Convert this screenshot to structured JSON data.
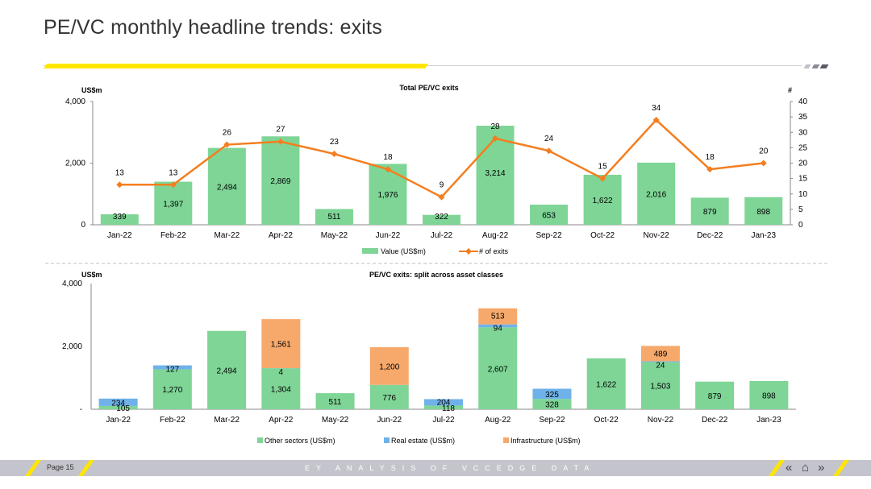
{
  "page_title": "PE/VC monthly headline trends: exits",
  "footer": {
    "page": "Page 15",
    "source": "EY ANALYSIS OF VCCEDGE DATA",
    "nav_prev": "«",
    "nav_home": "⌂",
    "nav_next": "»"
  },
  "colors": {
    "green": "#7ed596",
    "blue": "#6fb2e9",
    "orange": "#f7a96b",
    "line": "#f47e1f",
    "yellow": "#ffe600"
  },
  "chart_data": [
    {
      "type": "bar",
      "title": "Total PE/VC exits",
      "ylabel": "US$m",
      "y2label": "#",
      "ylim": [
        0,
        4000
      ],
      "y_ticks": [
        "0",
        "2,000",
        "4,000"
      ],
      "y2lim": [
        0,
        40
      ],
      "y2_ticks": [
        "0",
        "5",
        "10",
        "15",
        "20",
        "25",
        "30",
        "35",
        "40"
      ],
      "categories": [
        "Jan-22",
        "Feb-22",
        "Mar-22",
        "Apr-22",
        "May-22",
        "Jun-22",
        "Jul-22",
        "Aug-22",
        "Sep-22",
        "Oct-22",
        "Nov-22",
        "Dec-22",
        "Jan-23"
      ],
      "series": [
        {
          "name": "Value (US$m)",
          "kind": "bar",
          "values": [
            339,
            1397,
            2494,
            2869,
            511,
            1976,
            322,
            3214,
            653,
            1622,
            2016,
            879,
            898
          ],
          "labels": [
            "339",
            "1,397",
            "2,494",
            "2,869",
            "511",
            "1,976",
            "322",
            "3,214",
            "653",
            "1,622",
            "2,016",
            "879",
            "898"
          ]
        },
        {
          "name": "# of exits",
          "kind": "line",
          "axis": "right",
          "values": [
            13,
            13,
            26,
            27,
            23,
            18,
            9,
            28,
            24,
            15,
            34,
            18,
            20
          ],
          "labels": [
            "13",
            "13",
            "26",
            "27",
            "23",
            "18",
            "9",
            "28",
            "24",
            "15",
            "34",
            "18",
            "20"
          ]
        }
      ],
      "legend": "bottom"
    },
    {
      "type": "bar",
      "stacked": true,
      "title": "PE/VC exits: split across asset classes",
      "ylabel": "US$m",
      "ylim": [
        0,
        4000
      ],
      "y_ticks": [
        "-",
        "2,000",
        "4,000"
      ],
      "categories": [
        "Jan-22",
        "Feb-22",
        "Mar-22",
        "Apr-22",
        "May-22",
        "Jun-22",
        "Jul-22",
        "Aug-22",
        "Sep-22",
        "Oct-22",
        "Nov-22",
        "Dec-22",
        "Jan-23"
      ],
      "series": [
        {
          "name": "Other sectors (US$m)",
          "values": [
            105,
            1270,
            2494,
            1304,
            511,
            776,
            118,
            2607,
            328,
            1622,
            1503,
            879,
            898
          ],
          "labels": [
            "105",
            "1,270",
            "2,494",
            "1,304",
            "511",
            "776",
            "118",
            "2,607",
            "328",
            "1,622",
            "1,503",
            "879",
            "898"
          ]
        },
        {
          "name": "Real estate (US$m)",
          "values": [
            234,
            127,
            0,
            4,
            0,
            0,
            204,
            94,
            325,
            0,
            24,
            0,
            0
          ],
          "labels": [
            "234",
            "127",
            "",
            "4",
            "",
            "",
            "204",
            "94",
            "325",
            "",
            "24",
            "",
            ""
          ]
        },
        {
          "name": "Infrastructure (US$m)",
          "values": [
            0,
            0,
            0,
            1561,
            0,
            1200,
            0,
            513,
            0,
            0,
            489,
            0,
            0
          ],
          "labels": [
            "",
            "",
            "",
            "1,561",
            "",
            "1,200",
            "",
            "513",
            "",
            "",
            "489",
            "",
            ""
          ]
        }
      ],
      "legend": "bottom"
    }
  ]
}
